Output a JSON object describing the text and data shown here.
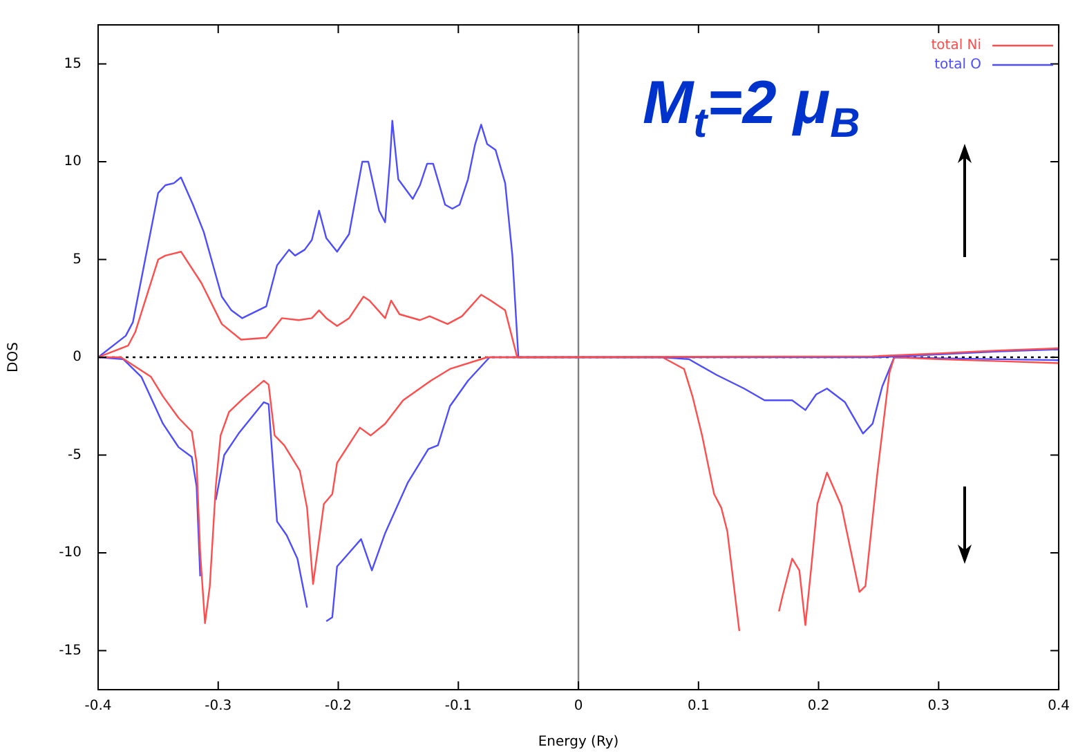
{
  "chart_data": {
    "type": "line",
    "xlabel": "Energy (Ry)",
    "ylabel": "DOS",
    "xlim": [
      -0.4,
      0.4
    ],
    "xticks": [
      -0.4,
      -0.3,
      -0.2,
      -0.1,
      0,
      0.1,
      0.2,
      0.3,
      0.4
    ],
    "ylim": [
      -17,
      17
    ],
    "yticks": [
      -15,
      -10,
      -5,
      0,
      5,
      10,
      15
    ],
    "grid": false,
    "legend": "top right",
    "marker": "none",
    "line_style": "solid",
    "annotations": [
      "M$_{t}$=2 μ$_{B}$"
    ],
    "ref_lines": [
      {
        "axis": "y",
        "value": 0,
        "color": "#000000",
        "line_style": "dotted"
      },
      {
        "axis": "x",
        "value": 0,
        "color": "#808080",
        "line_style": "solid"
      }
    ],
    "series": [
      {
        "name": "total Ni",
        "color": "#ff4d4d",
        "x": [
          -0.4,
          -0.375,
          -0.369,
          -0.35,
          -0.344,
          -0.331,
          -0.314,
          -0.297,
          -0.281,
          -0.26,
          -0.247,
          -0.233,
          -0.222,
          -0.216,
          -0.21,
          -0.201,
          -0.191,
          -0.179,
          -0.174,
          -0.161,
          -0.156,
          -0.149,
          -0.132,
          -0.124,
          -0.109,
          -0.097,
          -0.081,
          -0.073,
          -0.061,
          -0.051,
          0.245,
          0.3,
          0.35,
          0.4
        ],
        "values": [
          0,
          0.6,
          1.3,
          5,
          5.2,
          5.4,
          3.8,
          1.7,
          0.9,
          1,
          2,
          1.9,
          2,
          2.4,
          2,
          1.6,
          2,
          3.1,
          2.9,
          2,
          2.9,
          2.2,
          1.9,
          2.1,
          1.7,
          2.1,
          3.2,
          2.9,
          2.4,
          0,
          0.05,
          0.2,
          0.35,
          0.46
        ]
      },
      {
        "name": "total O",
        "color": "#4d4dff",
        "x": [
          -0.4,
          -0.377,
          -0.371,
          -0.35,
          -0.344,
          -0.337,
          -0.331,
          -0.321,
          -0.312,
          -0.297,
          -0.289,
          -0.28,
          -0.26,
          -0.251,
          -0.241,
          -0.236,
          -0.228,
          -0.222,
          -0.216,
          -0.21,
          -0.201,
          -0.191,
          -0.18,
          -0.175,
          -0.166,
          -0.161,
          -0.157,
          -0.155,
          -0.153,
          -0.15,
          -0.138,
          -0.132,
          -0.126,
          -0.121,
          -0.111,
          -0.105,
          -0.099,
          -0.092,
          -0.086,
          -0.081,
          -0.076,
          -0.069,
          -0.061,
          -0.055,
          -0.05,
          0.25,
          0.3,
          0.35,
          0.4
        ],
        "values": [
          0,
          1.1,
          1.8,
          8.4,
          8.8,
          8.9,
          9.2,
          7.8,
          6.4,
          3.1,
          2.4,
          2,
          2.6,
          4.7,
          5.5,
          5.2,
          5.5,
          6,
          7.5,
          6.1,
          5.4,
          6.3,
          10,
          10,
          7.5,
          6.9,
          10,
          12.1,
          10.9,
          9.1,
          8.1,
          8.8,
          9.9,
          9.9,
          7.8,
          7.6,
          7.8,
          9.1,
          10.9,
          11.9,
          10.9,
          10.6,
          8.9,
          5.2,
          0,
          0,
          0.15,
          0.3,
          0.4
        ]
      },
      {
        "color": "#ff4d4d",
        "x": [
          -0.4,
          -0.381,
          -0.356,
          -0.346,
          -0.333,
          -0.322,
          -0.318,
          -0.315,
          -0.311,
          -0.307,
          -0.302,
          -0.298,
          -0.291,
          -0.279,
          -0.262,
          -0.258,
          -0.253,
          -0.245,
          -0.232,
          -0.226,
          -0.221,
          -0.217,
          -0.212,
          -0.205,
          -0.201,
          -0.182,
          -0.173,
          -0.161,
          -0.146,
          -0.123,
          -0.107,
          -0.076,
          0.07,
          0.088,
          0.095,
          0.103,
          0.113,
          0.119,
          0.124,
          0.134,
          0.142,
          0.15,
          0.158,
          0.167,
          0.17,
          0.178,
          0.184,
          0.189,
          0.194,
          0.199,
          0.207,
          0.219,
          0.234,
          0.239,
          0.249,
          0.259,
          0.263,
          0.3,
          0.35,
          0.4
        ],
        "values": [
          0,
          0,
          -1,
          -2,
          -3.1,
          -3.8,
          -5.4,
          -10,
          -13.6,
          -11.7,
          -6.6,
          -4,
          -2.8,
          -2.1,
          -1.2,
          -1.4,
          -4,
          -4.5,
          -5.8,
          -7.7,
          -11.6,
          -9.8,
          -7.5,
          -7,
          -5.4,
          -3.6,
          -4,
          -3.4,
          -2.2,
          -1.2,
          -0.6,
          0,
          0,
          -0.6,
          -2,
          -4,
          -7,
          -7.7,
          -8.9,
          -14,
          null,
          null,
          null,
          -13,
          -12.2,
          -10.3,
          -10.9,
          -13.7,
          -10.7,
          -7.5,
          -5.9,
          -7.6,
          -12,
          -11.7,
          -5.9,
          -0.8,
          0,
          -0.1,
          -0.2,
          -0.3
        ]
      },
      {
        "color": "#4d4dff",
        "x": [
          -0.4,
          -0.379,
          -0.364,
          -0.346,
          -0.333,
          -0.322,
          -0.318,
          -0.315,
          -0.312,
          -0.31,
          -0.308,
          -0.302,
          -0.295,
          -0.283,
          -0.262,
          -0.258,
          -0.251,
          -0.243,
          -0.234,
          -0.226,
          -0.224,
          -0.219,
          -0.214,
          -0.21,
          -0.205,
          -0.201,
          -0.191,
          -0.181,
          -0.172,
          -0.161,
          -0.142,
          -0.125,
          -0.117,
          -0.107,
          -0.092,
          -0.074,
          0.07,
          0.092,
          0.115,
          0.138,
          0.155,
          0.168,
          0.178,
          0.189,
          0.198,
          0.207,
          0.222,
          0.237,
          0.245,
          0.253,
          0.263,
          0.3,
          0.4
        ],
        "values": [
          0,
          -0.1,
          -1,
          -3.4,
          -4.6,
          -5.1,
          -6.6,
          -11.2,
          null,
          null,
          null,
          -7.3,
          -5,
          -3.9,
          -2.3,
          -2.4,
          -8.4,
          -9.1,
          -10.3,
          -12.8,
          null,
          null,
          null,
          -13.5,
          -13.3,
          -10.7,
          -10,
          -9.3,
          -10.9,
          -9,
          -6.4,
          -4.7,
          -4.5,
          -2.5,
          -1.2,
          0,
          0,
          -0.1,
          -0.9,
          -1.6,
          -2.2,
          -2.2,
          -2.2,
          -2.7,
          -1.9,
          -1.6,
          -2.3,
          -3.9,
          -3.4,
          -1.5,
          0,
          -0.05,
          -0.15
        ]
      }
    ]
  }
}
